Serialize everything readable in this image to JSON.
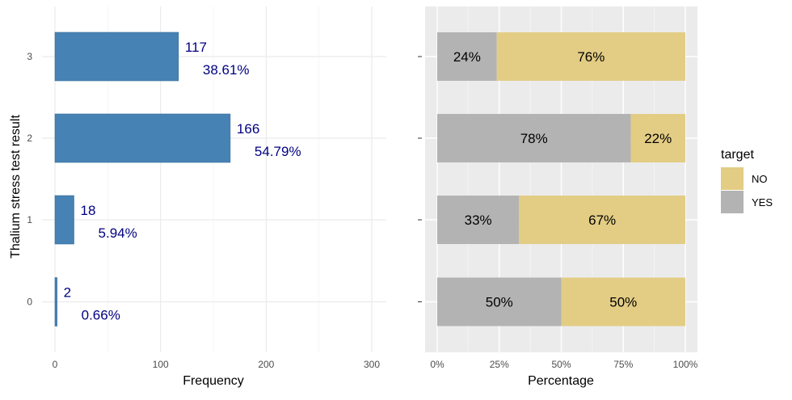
{
  "colors": {
    "bar_blue": "#4682b4",
    "bar_label": "#000080",
    "no_fill": "#e3cd84",
    "yes_fill": "#b3b3b3",
    "panel_grey": "#ebebeb",
    "grid_light": "#ebebeb",
    "axis_text": "#4d4d4d"
  },
  "chart_data": [
    {
      "type": "bar",
      "orientation": "horizontal",
      "categories": [
        "0",
        "1",
        "2",
        "3"
      ],
      "values": [
        2,
        18,
        166,
        117
      ],
      "percent_labels": [
        "0.66%",
        "5.94%",
        "54.79%",
        "38.61%"
      ],
      "xlabel": "Frequency",
      "ylabel": "Thalium stress test result",
      "xlim": [
        0,
        300
      ],
      "xticks": [
        "0",
        "100",
        "200",
        "300"
      ],
      "grid": true
    },
    {
      "type": "bar",
      "orientation": "horizontal",
      "stacked": true,
      "categories": [
        "0",
        "1",
        "2",
        "3"
      ],
      "series": [
        {
          "name": "YES",
          "values": [
            50,
            33,
            78,
            24
          ],
          "labels": [
            "50%",
            "33%",
            "78%",
            "24%"
          ]
        },
        {
          "name": "NO",
          "values": [
            50,
            67,
            22,
            76
          ],
          "labels": [
            "50%",
            "67%",
            "22%",
            "76%"
          ]
        }
      ],
      "xlabel": "Percentage",
      "xlim": [
        0,
        100
      ],
      "xticks": [
        "0%",
        "25%",
        "50%",
        "75%",
        "100%"
      ],
      "legend": {
        "title": "target",
        "entries": [
          "NO",
          "YES"
        ],
        "placement": "right"
      },
      "grid": true
    }
  ]
}
